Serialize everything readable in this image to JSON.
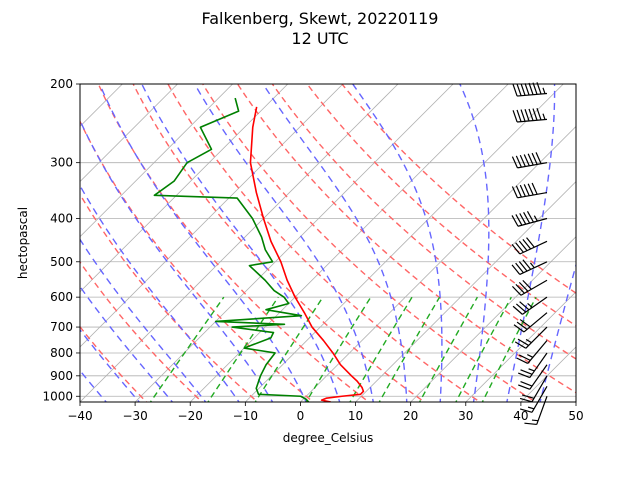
{
  "chart_data": {
    "type": "line",
    "title": "Falkenberg, Skewt, 20220119",
    "subtitle": "12 UTC",
    "xlabel": "degree_Celsius",
    "ylabel": "hectopascal",
    "xlim": [
      -40,
      50
    ],
    "ylim_hpa": [
      1030,
      200
    ],
    "y_scale": "log",
    "x_ticks": [
      "−40",
      "−30",
      "−20",
      "−10",
      "0",
      "10",
      "20",
      "30",
      "40",
      "50"
    ],
    "x_tick_values": [
      -40,
      -30,
      -20,
      -10,
      0,
      10,
      20,
      30,
      40,
      50
    ],
    "y_ticks": [
      "200",
      "300",
      "400",
      "500",
      "600",
      "700",
      "800",
      "900",
      "1000"
    ],
    "y_tick_values": [
      200,
      300,
      400,
      500,
      600,
      700,
      800,
      900,
      1000
    ],
    "grid": true,
    "skew": "isotherms skewed 45 degrees",
    "colors": {
      "temperature": "#ff0000",
      "dewpoint": "#008000",
      "dry_adiabats": "#ff6666",
      "moist_adiabats": "#6666ff",
      "mixing_ratio": "#22aa22",
      "wind_barbs": "#000000",
      "grid": "#b0b0b0"
    },
    "series": [
      {
        "role": "temperature",
        "points": [
          [
            1030,
            5.5
          ],
          [
            1020,
            3.5
          ],
          [
            1010,
            4.0
          ],
          [
            1000,
            6.5
          ],
          [
            990,
            9.5
          ],
          [
            975,
            9.5
          ],
          [
            955,
            8.5
          ],
          [
            925,
            6.5
          ],
          [
            900,
            4.5
          ],
          [
            850,
            0.5
          ],
          [
            800,
            -3.0
          ],
          [
            750,
            -7.0
          ],
          [
            700,
            -11.5
          ],
          [
            650,
            -15.5
          ],
          [
            600,
            -20.0
          ],
          [
            550,
            -24.5
          ],
          [
            500,
            -29.0
          ],
          [
            450,
            -34.5
          ],
          [
            400,
            -40.0
          ],
          [
            350,
            -46.0
          ],
          [
            300,
            -52.5
          ],
          [
            250,
            -58.5
          ],
          [
            225,
            -61.5
          ]
        ]
      },
      {
        "role": "dewpoint",
        "points": [
          [
            1030,
            1.5
          ],
          [
            1015,
            0.5
          ],
          [
            1000,
            -1.0
          ],
          [
            990,
            -9.0
          ],
          [
            960,
            -10.5
          ],
          [
            900,
            -12.0
          ],
          [
            850,
            -13.0
          ],
          [
            800,
            -13.5
          ],
          [
            780,
            -20.0
          ],
          [
            740,
            -17.0
          ],
          [
            720,
            -17.5
          ],
          [
            700,
            -26.0
          ],
          [
            690,
            -17.0
          ],
          [
            680,
            -30.0
          ],
          [
            660,
            -15.5
          ],
          [
            640,
            -23.0
          ],
          [
            620,
            -20.0
          ],
          [
            600,
            -22.0
          ],
          [
            580,
            -25.0
          ],
          [
            550,
            -28.5
          ],
          [
            510,
            -34.0
          ],
          [
            500,
            -30.5
          ],
          [
            470,
            -34.0
          ],
          [
            440,
            -37.0
          ],
          [
            400,
            -42.0
          ],
          [
            360,
            -48.5
          ],
          [
            355,
            -64.0
          ],
          [
            330,
            -63.0
          ],
          [
            300,
            -64.0
          ],
          [
            280,
            -62.0
          ],
          [
            250,
            -68.0
          ],
          [
            230,
            -64.0
          ],
          [
            215,
            -67.0
          ]
        ]
      }
    ],
    "wind_barbs": [
      {
        "pressure": 210,
        "speed_kt": 75,
        "direction_deg": 265
      },
      {
        "pressure": 240,
        "speed_kt": 75,
        "direction_deg": 265
      },
      {
        "pressure": 300,
        "speed_kt": 70,
        "direction_deg": 260
      },
      {
        "pressure": 350,
        "speed_kt": 60,
        "direction_deg": 260
      },
      {
        "pressure": 400,
        "speed_kt": 55,
        "direction_deg": 255
      },
      {
        "pressure": 450,
        "speed_kt": 50,
        "direction_deg": 245
      },
      {
        "pressure": 500,
        "speed_kt": 45,
        "direction_deg": 245
      },
      {
        "pressure": 550,
        "speed_kt": 40,
        "direction_deg": 240
      },
      {
        "pressure": 600,
        "speed_kt": 35,
        "direction_deg": 235
      },
      {
        "pressure": 650,
        "speed_kt": 30,
        "direction_deg": 230
      },
      {
        "pressure": 700,
        "speed_kt": 25,
        "direction_deg": 225
      },
      {
        "pressure": 750,
        "speed_kt": 25,
        "direction_deg": 220
      },
      {
        "pressure": 800,
        "speed_kt": 25,
        "direction_deg": 215
      },
      {
        "pressure": 850,
        "speed_kt": 20,
        "direction_deg": 215
      },
      {
        "pressure": 900,
        "speed_kt": 20,
        "direction_deg": 210
      },
      {
        "pressure": 950,
        "speed_kt": 15,
        "direction_deg": 210
      },
      {
        "pressure": 1000,
        "speed_kt": 15,
        "direction_deg": 200
      }
    ]
  }
}
